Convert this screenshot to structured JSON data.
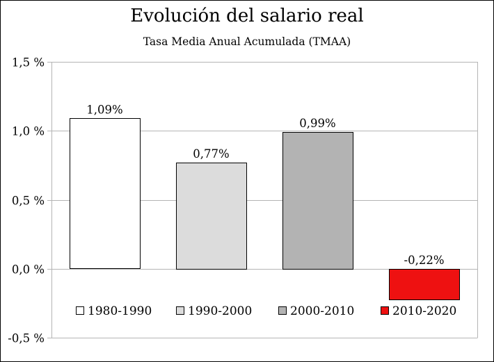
{
  "chart_data": {
    "type": "bar",
    "title": "Evolución del salario real",
    "subtitle": "Tasa Media Anual Acumulada (TMAA)",
    "categories": [
      "1980-1990",
      "1990-2000",
      "2000-2010",
      "2010-2020"
    ],
    "values": [
      1.09,
      0.77,
      0.99,
      -0.22
    ],
    "data_labels": [
      "1,09%",
      "0,77%",
      "0,99%",
      "-0,22%"
    ],
    "colors": [
      "#ffffff",
      "#dcdcdc",
      "#b3b3b3",
      "#ee1111"
    ],
    "ylim": [
      -0.5,
      1.5
    ],
    "yticks": [
      {
        "value": 1.5,
        "label": "1,5 %"
      },
      {
        "value": 1.0,
        "label": "1,0 %"
      },
      {
        "value": 0.5,
        "label": "0,5 %"
      },
      {
        "value": 0.0,
        "label": "0,0 %"
      },
      {
        "value": -0.5,
        "label": "-0,5 %"
      }
    ],
    "grid": true,
    "legend": {
      "placement": "bottom-inside",
      "entries": [
        "1980-1990",
        "1990-2000",
        "2000-2010",
        "2010-2020"
      ]
    },
    "xlabel": "",
    "ylabel": ""
  }
}
